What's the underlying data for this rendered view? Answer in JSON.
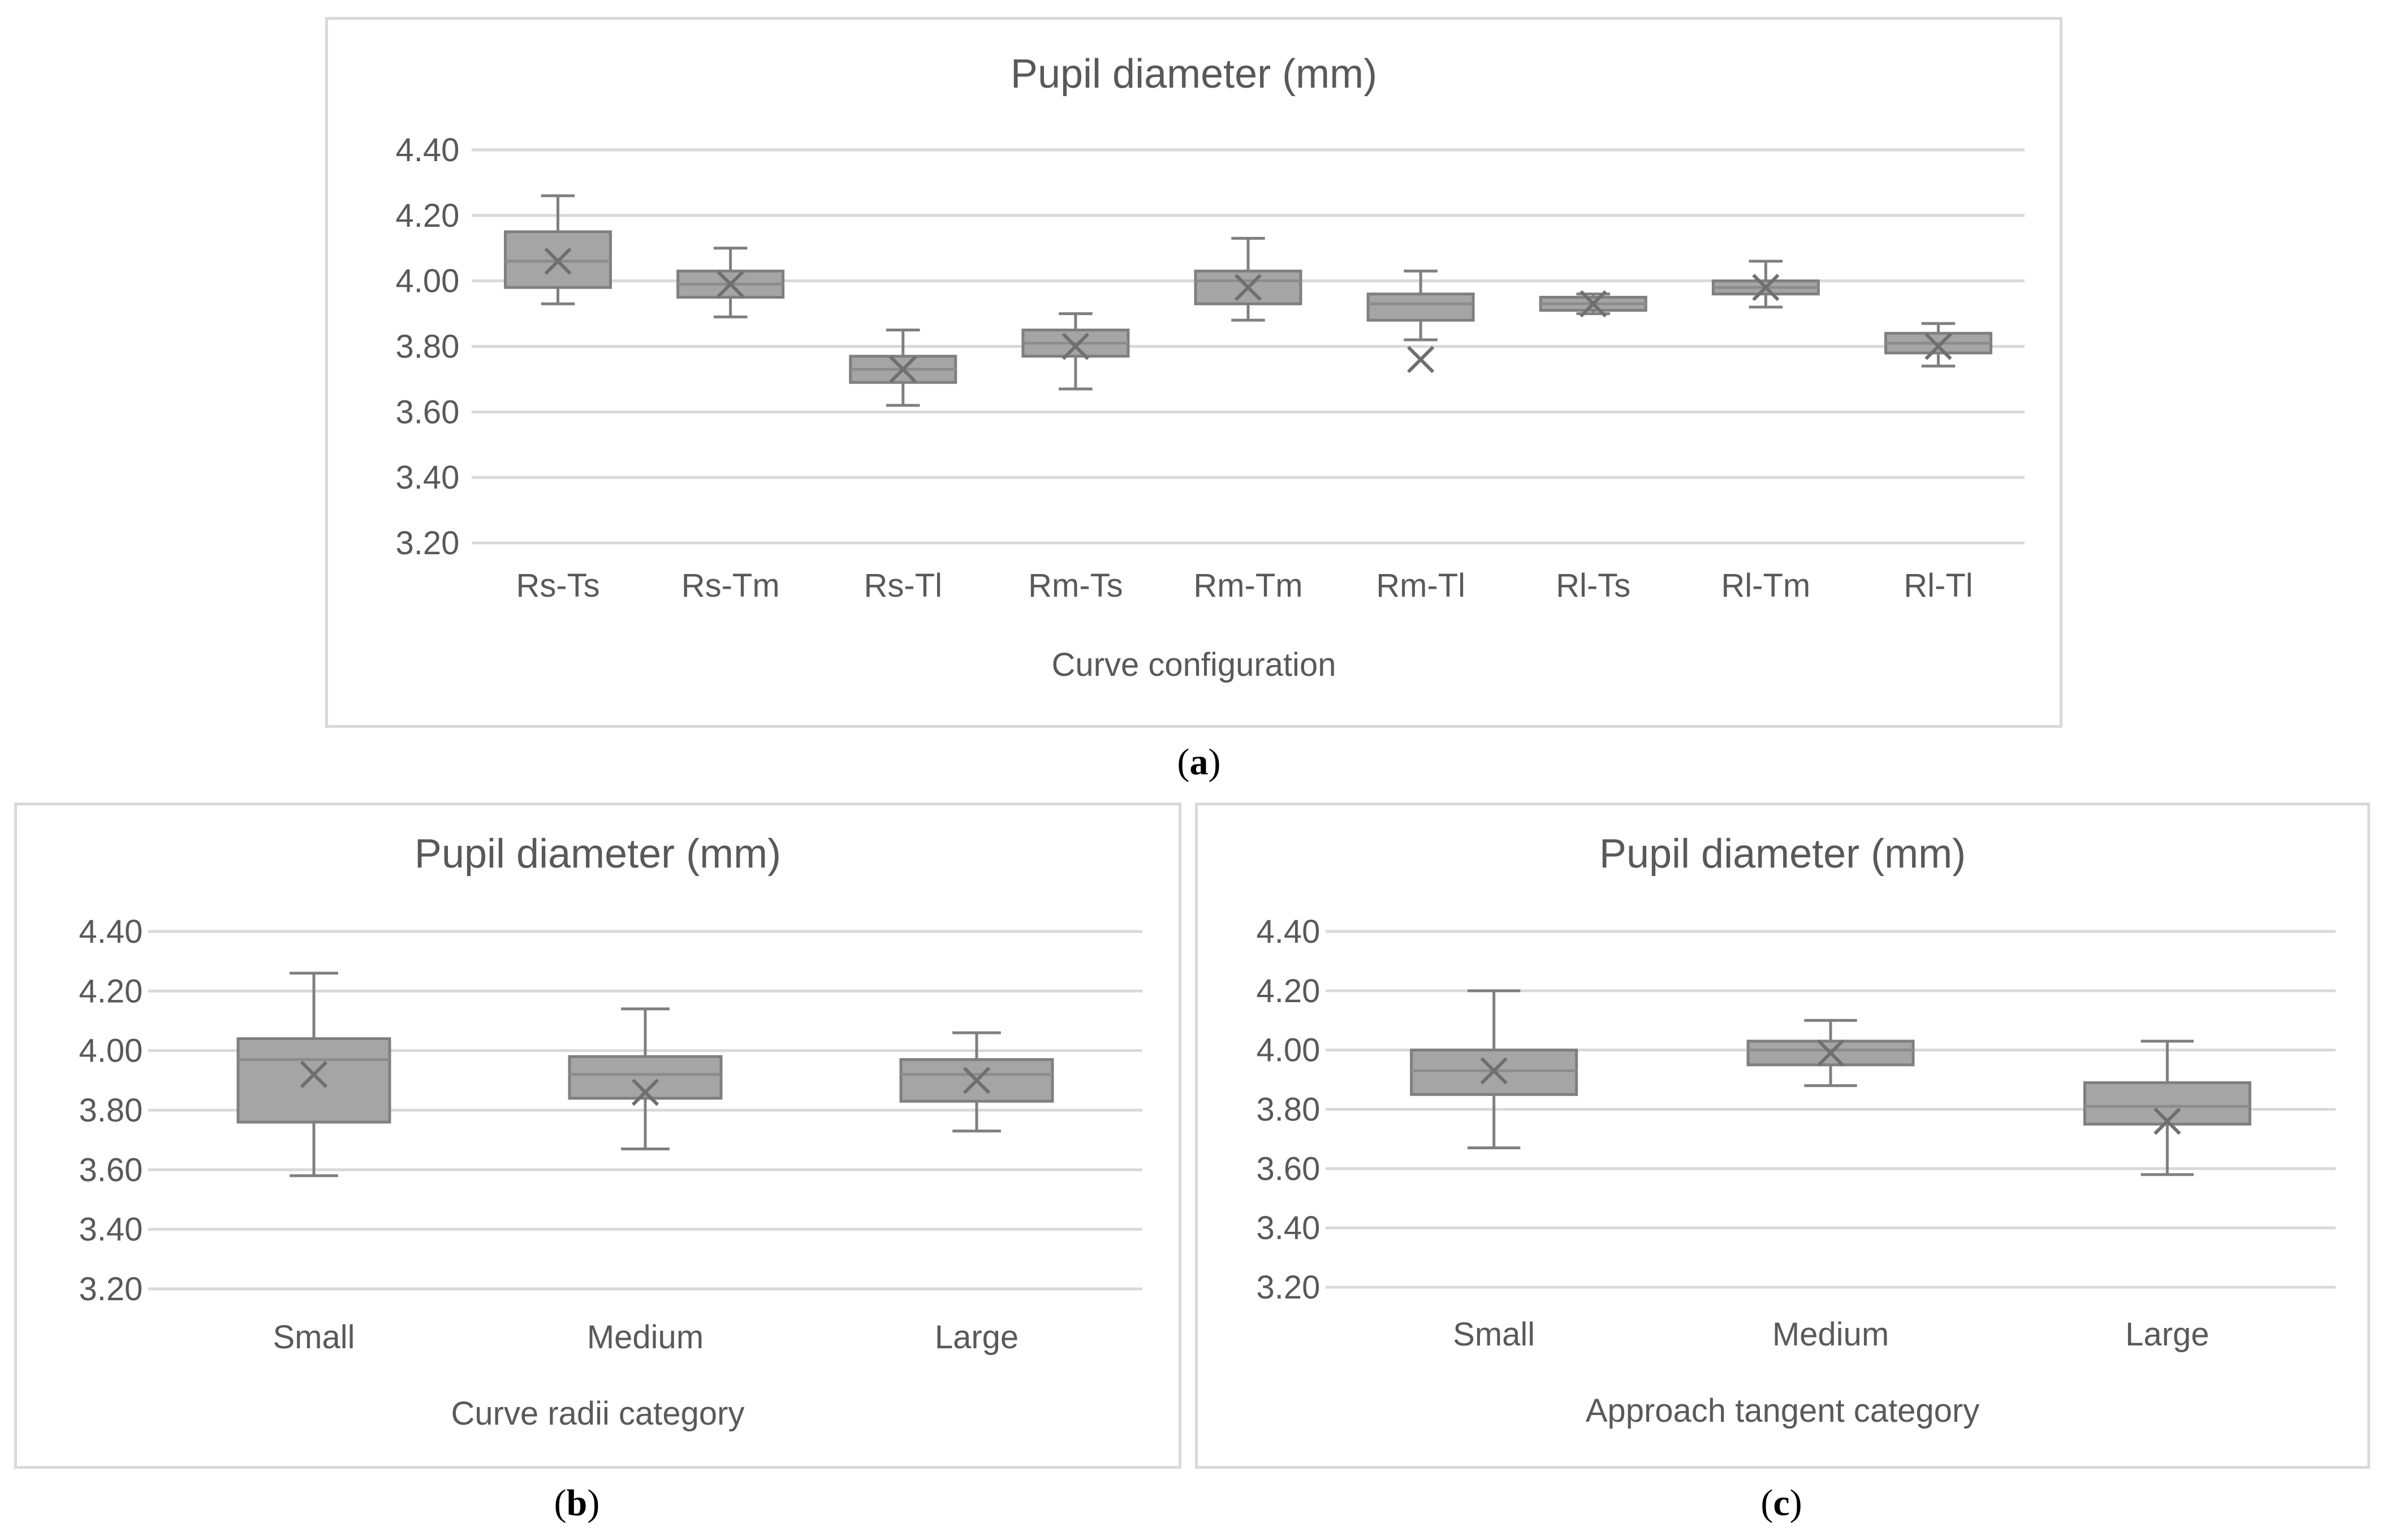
{
  "chart_data": [
    {
      "id": "a",
      "type": "box",
      "title": "Pupil diameter (mm)",
      "xlabel": "Curve configuration",
      "ylabel": "",
      "ylim": [
        3.2,
        4.4
      ],
      "yticks": [
        "4.40",
        "4.20",
        "4.00",
        "3.80",
        "3.60",
        "3.40",
        "3.20"
      ],
      "categories": [
        "Rs-Ts",
        "Rs-Tm",
        "Rs-Tl",
        "Rm-Ts",
        "Rm-Tm",
        "Rm-Tl",
        "Rl-Ts",
        "Rl-Tm",
        "Rl-Tl"
      ],
      "boxes": [
        {
          "min": 3.93,
          "q1": 3.98,
          "median": 4.06,
          "q3": 4.15,
          "max": 4.26,
          "mean": 4.06
        },
        {
          "min": 3.89,
          "q1": 3.95,
          "median": 3.99,
          "q3": 4.03,
          "max": 4.1,
          "mean": 3.99
        },
        {
          "min": 3.62,
          "q1": 3.69,
          "median": 3.73,
          "q3": 3.77,
          "max": 3.85,
          "mean": 3.73
        },
        {
          "min": 3.67,
          "q1": 3.77,
          "median": 3.81,
          "q3": 3.85,
          "max": 3.9,
          "mean": 3.8
        },
        {
          "min": 3.88,
          "q1": 3.93,
          "median": 4.0,
          "q3": 4.03,
          "max": 4.13,
          "mean": 3.98
        },
        {
          "min": 3.82,
          "q1": 3.88,
          "median": 3.93,
          "q3": 3.96,
          "max": 4.03,
          "mean": 3.76
        },
        {
          "min": 3.9,
          "q1": 3.91,
          "median": 3.93,
          "q3": 3.95,
          "max": 3.96,
          "mean": 3.93
        },
        {
          "min": 3.92,
          "q1": 3.96,
          "median": 3.98,
          "q3": 4.0,
          "max": 4.06,
          "mean": 3.98
        },
        {
          "min": 3.74,
          "q1": 3.78,
          "median": 3.81,
          "q3": 3.84,
          "max": 3.87,
          "mean": 3.8
        }
      ],
      "caption_label": "a",
      "color": "#a5a5a5"
    },
    {
      "id": "b",
      "type": "box",
      "title": "Pupil diameter (mm)",
      "xlabel": "Curve radii category",
      "ylabel": "",
      "ylim": [
        3.2,
        4.4
      ],
      "yticks": [
        "4.40",
        "4.20",
        "4.00",
        "3.80",
        "3.60",
        "3.40",
        "3.20"
      ],
      "categories": [
        "Small",
        "Medium",
        "Large"
      ],
      "boxes": [
        {
          "min": 3.58,
          "q1": 3.76,
          "median": 3.97,
          "q3": 4.04,
          "max": 4.26,
          "mean": 3.92
        },
        {
          "min": 3.67,
          "q1": 3.84,
          "median": 3.92,
          "q3": 3.98,
          "max": 4.14,
          "mean": 3.86
        },
        {
          "min": 3.73,
          "q1": 3.83,
          "median": 3.92,
          "q3": 3.97,
          "max": 4.06,
          "mean": 3.9
        }
      ],
      "caption_label": "b",
      "color": "#a5a5a5"
    },
    {
      "id": "c",
      "type": "box",
      "title": "Pupil diameter (mm)",
      "xlabel": "Approach tangent category",
      "ylabel": "",
      "ylim": [
        3.2,
        4.4
      ],
      "yticks": [
        "4.40",
        "4.20",
        "4.00",
        "3.80",
        "3.60",
        "3.40",
        "3.20"
      ],
      "categories": [
        "Small",
        "Medium",
        "Large"
      ],
      "boxes": [
        {
          "min": 3.67,
          "q1": 3.85,
          "median": 3.93,
          "q3": 4.0,
          "max": 4.2,
          "mean": 3.93
        },
        {
          "min": 3.88,
          "q1": 3.95,
          "median": 4.0,
          "q3": 4.03,
          "max": 4.1,
          "mean": 3.99
        },
        {
          "min": 3.58,
          "q1": 3.75,
          "median": 3.81,
          "q3": 3.89,
          "max": 4.03,
          "mean": 3.76
        }
      ],
      "caption_label": "c",
      "color": "#a5a5a5"
    }
  ]
}
